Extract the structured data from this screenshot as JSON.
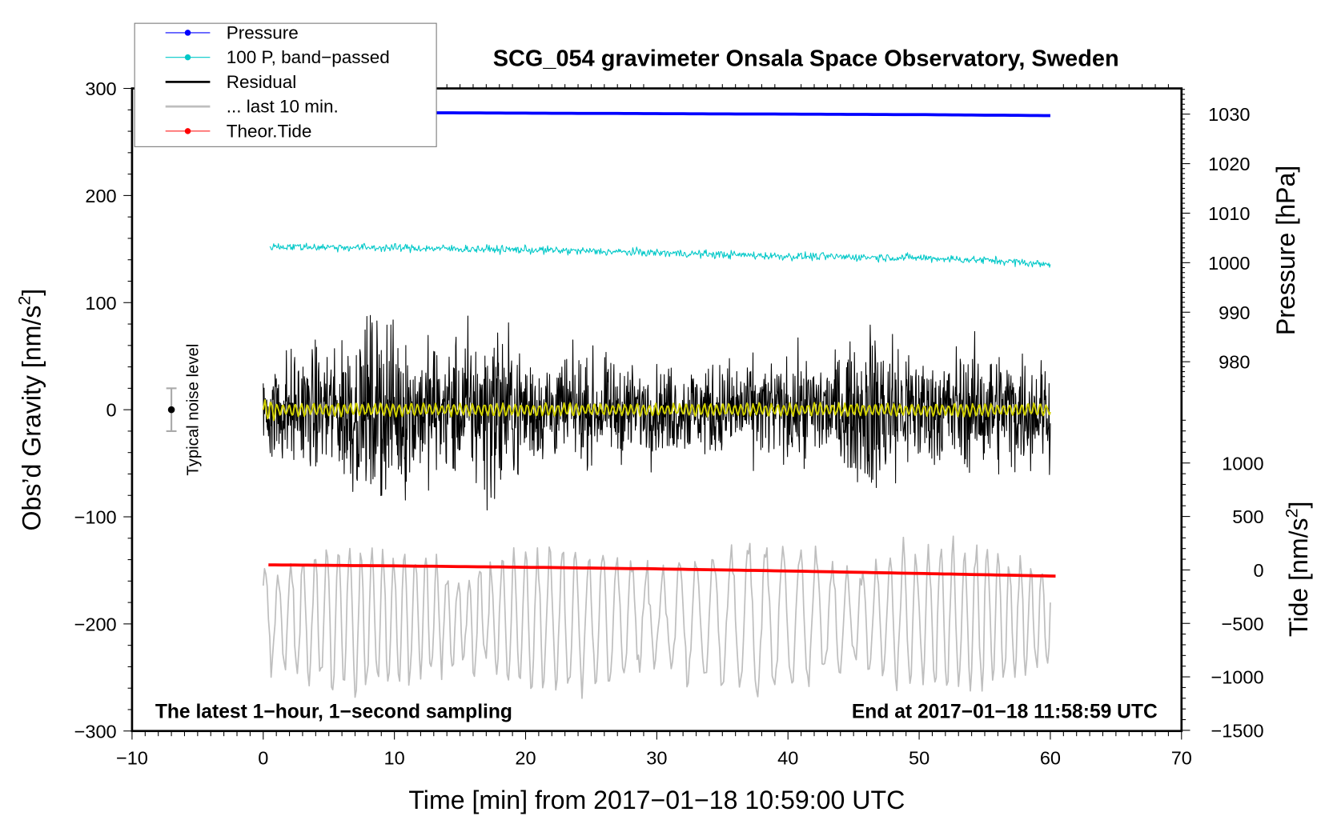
{
  "chart_data": {
    "type": "line",
    "title": "SCG_054 gravimeter Onsala Space Observatory, Sweden",
    "xlabel": "Time [min] from 2017−01−18 10:59:00 UTC",
    "ylabel_left_main": "Obs’d Gravity [nm/s",
    "ylabel_left_sup": "2",
    "ylabel_left_end": "]",
    "ylabel_right_pressure": "Pressure [hPa]",
    "ylabel_right_tide_main": "Tide [nm/s",
    "ylabel_right_tide_sup": "2",
    "ylabel_right_tide_end": "]",
    "xlim": [
      -10,
      70
    ],
    "ylim": [
      -300,
      300
    ],
    "pressure_axis_ticks": [
      "1030",
      "1020",
      "1010",
      "1000",
      "990",
      "980"
    ],
    "pressure_axis_values": [
      1030,
      1020,
      1010,
      1000,
      990,
      980
    ],
    "tide_axis_ticks": [
      "1000",
      "500",
      "0",
      "−500",
      "−1000",
      "−1500"
    ],
    "tide_axis_values": [
      1000,
      500,
      0,
      -500,
      -1000,
      -1500
    ],
    "x_ticks": [
      "−10",
      "0",
      "10",
      "20",
      "30",
      "40",
      "50",
      "60",
      "70"
    ],
    "x_tick_values": [
      -10,
      0,
      10,
      20,
      30,
      40,
      50,
      60,
      70
    ],
    "y_ticks": [
      "300",
      "200",
      "100",
      "0",
      "−100",
      "−200",
      "−300"
    ],
    "y_tick_values": [
      300,
      200,
      100,
      0,
      -100,
      -200,
      -300
    ],
    "legend": {
      "placement": "top-left",
      "entries": [
        {
          "label": "Pressure",
          "color": "#0000ff",
          "marker": "dot"
        },
        {
          "label": "100 P, band−passed",
          "color": "#00c8c8",
          "marker": "dot"
        },
        {
          "label": "Residual",
          "color": "#000000",
          "marker": "line"
        },
        {
          "label": "... last 10 min.",
          "color": "#bebebe",
          "marker": "line"
        },
        {
          "label": "Theor.Tide",
          "color": "#ff0000",
          "marker": "dot"
        }
      ]
    },
    "annotations": {
      "bottom_left": "The latest 1−hour, 1−second sampling",
      "bottom_right": "End at 2017−01−18 11:58:59 UTC",
      "noise_label": "Typical noise level"
    },
    "noise_level": {
      "x": -7,
      "center": 0,
      "halfwidth": 20
    },
    "series": [
      {
        "name": "Pressure",
        "axis": "pressure_hPa",
        "color": "#0000ff",
        "x": [
          0,
          10,
          20,
          30,
          40,
          50,
          60
        ],
        "values": [
          1030.3,
          1030.3,
          1030.2,
          1030.1,
          1030.0,
          1029.9,
          1029.7
        ]
      },
      {
        "name": "100 P, band-passed",
        "axis": "pressure_hPa",
        "color": "#00c8c8",
        "x": [
          0,
          10,
          20,
          30,
          40,
          50,
          56,
          60
        ],
        "values": [
          1003.3,
          1003.0,
          1002.6,
          1002.0,
          1001.3,
          1001.0,
          1000.4,
          999.6
        ],
        "noise_amplitude_hPa": 0.9
      },
      {
        "name": "Residual",
        "axis": "gravity",
        "color": "#000000",
        "envelope_x": [
          0,
          5,
          7,
          10,
          12,
          15,
          18,
          20,
          25,
          30,
          35,
          40,
          45,
          47,
          48,
          50,
          55,
          60
        ],
        "envelope_nm_s2": [
          45,
          50,
          70,
          75,
          55,
          60,
          75,
          45,
          40,
          35,
          40,
          40,
          50,
          80,
          65,
          45,
          50,
          45
        ],
        "smoothed_color": "#d2d200",
        "smoothed_amplitude": 6
      },
      {
        "name": "... last 10 min.",
        "axis": "gravity",
        "color": "#bebebe",
        "center": -195,
        "amplitude": 55
      },
      {
        "name": "Theor.Tide",
        "axis": "tide_nm_s2",
        "color": "#ff0000",
        "x": [
          0,
          10,
          20,
          30,
          40,
          50,
          60.5
        ],
        "values": [
          48,
          38,
          25,
          10,
          -10,
          -33,
          -58
        ]
      }
    ]
  }
}
